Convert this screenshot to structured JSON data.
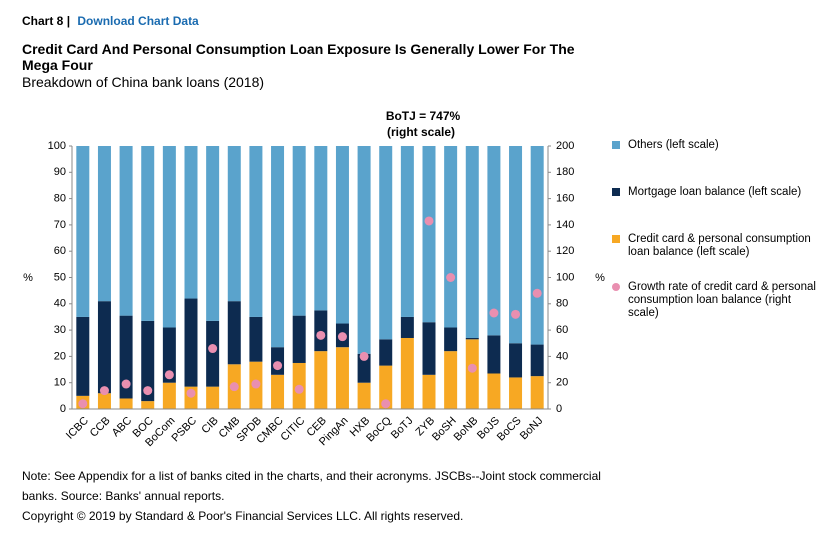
{
  "header": {
    "chart_label": "Chart 8",
    "separator": "|",
    "link": "Download Chart Data"
  },
  "chart_data": {
    "type": "bar",
    "stacked": true,
    "title": "Credit Card And Personal Consumption Loan Exposure Is Generally Lower For The Mega Four",
    "subtitle": "Breakdown of China bank loans (2018)",
    "annotations": [
      "BoTJ = 747%",
      "(right scale)"
    ],
    "ylabel": "%",
    "y2label": "%",
    "categories": [
      "ICBC",
      "CCB",
      "ABC",
      "BOC",
      "BoCom",
      "PSBC",
      "CIB",
      "CMB",
      "SPDB",
      "CMBC",
      "CITIC",
      "CEB",
      "PingAn",
      "HXB",
      "BoCQ",
      "BoTJ",
      "ZYB",
      "BoSH",
      "BoNB",
      "BoJS",
      "BoCS",
      "BoNJ"
    ],
    "series": [
      {
        "name": "Credit card & personal consumption loan balance (left scale)",
        "color": "#f7a823",
        "values": [
          5,
          6,
          4,
          3,
          10,
          8.5,
          8.5,
          17,
          18,
          13,
          17.5,
          22,
          23.5,
          10,
          16.5,
          27,
          13,
          22,
          26.5,
          13.5,
          12,
          12.5
        ]
      },
      {
        "name": "Mortgage loan balance (left scale)",
        "color": "#0d2b50",
        "values": [
          30,
          35,
          31.5,
          30.5,
          21,
          33.5,
          25,
          24,
          17,
          10.5,
          18,
          15.5,
          9,
          11,
          10,
          8,
          20,
          9,
          0.5,
          14.5,
          13,
          12
        ]
      },
      {
        "name": "Others (left scale)",
        "color": "#5aa3cc",
        "values": [
          65,
          59,
          64.5,
          66.5,
          69,
          58,
          66.5,
          59,
          65,
          76.5,
          64.5,
          62.5,
          67.5,
          79,
          73.5,
          65,
          67,
          69,
          73,
          72,
          75,
          75.5
        ]
      },
      {
        "name": "Growth rate of credit card & personal consumption loan balance (right scale)",
        "color": "#e98fb0",
        "type": "scatter",
        "axis": "y2",
        "values": [
          4,
          14,
          19,
          14,
          26,
          12,
          46,
          17,
          19,
          33,
          15,
          56,
          55,
          40,
          4,
          null,
          143,
          100,
          31,
          73,
          72,
          88
        ]
      }
    ],
    "legend_order": [
      2,
      1,
      0,
      3
    ],
    "ylim": [
      0,
      100
    ],
    "yticks": [
      0,
      10,
      20,
      30,
      40,
      50,
      60,
      70,
      80,
      90,
      100
    ],
    "y2lim": [
      0,
      200
    ],
    "y2ticks": [
      0,
      20,
      40,
      60,
      80,
      100,
      120,
      140,
      160,
      180,
      200
    ],
    "grid": false
  },
  "footer": {
    "note": "Note: See Appendix for a list of banks cited in the charts, and their acronyms. JSCBs--Joint stock commercial banks. Source: Banks' annual reports.",
    "copyright": "Copyright © 2019 by Standard & Poor's Financial Services LLC. All rights reserved."
  }
}
